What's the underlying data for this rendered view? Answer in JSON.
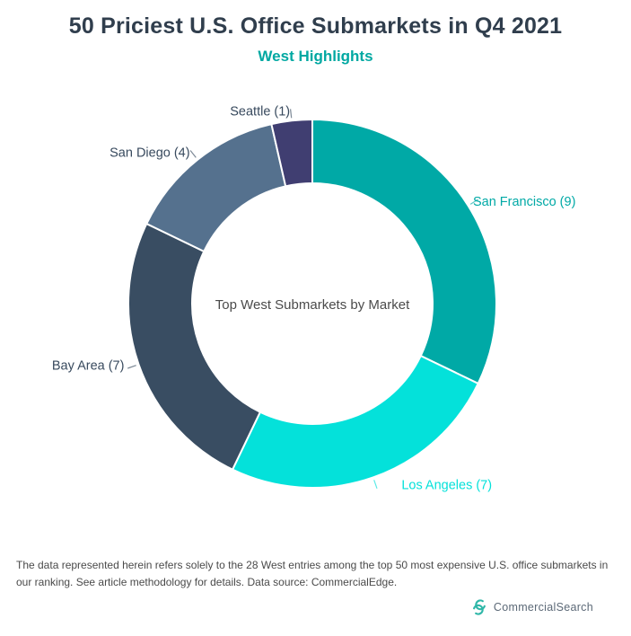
{
  "header": {
    "title": "50 Priciest U.S. Office Submarkets in Q4 2021",
    "title_color": "#303E4D",
    "subtitle": "West Highlights",
    "subtitle_color": "#00A8A2"
  },
  "chart_data": {
    "type": "pie",
    "donut": true,
    "direction": "clockwise",
    "start_angle_deg": 0,
    "title": "Top West Submarkets by Market",
    "center_label": "Top West Submarkets by Market",
    "total": 28,
    "categories": [
      "San Francisco",
      "Los Angeles",
      "Bay Area",
      "San Diego",
      "Seattle"
    ],
    "values": [
      9,
      7,
      7,
      4,
      1
    ],
    "slices": [
      {
        "label": "San Francisco",
        "value": 9,
        "display": "San Francisco (9)",
        "color": "#00A9A6",
        "label_color": "#00A9A6"
      },
      {
        "label": "Los Angeles",
        "value": 7,
        "display": "Los Angeles (7)",
        "color": "#04E1DA",
        "label_color": "#04E1DA"
      },
      {
        "label": "Bay Area",
        "value": 7,
        "display": "Bay Area (7)",
        "color": "#394D62",
        "label_color": "#384A5E"
      },
      {
        "label": "San Diego",
        "value": 4,
        "display": "San Diego (4)",
        "color": "#55718E",
        "label_color": "#384A5E"
      },
      {
        "label": "Seattle",
        "value": 1,
        "display": "Seattle (1)",
        "color": "#403E71",
        "label_color": "#384A5E"
      }
    ]
  },
  "footer": {
    "disclaimer": "The data represented herein refers solely to the 28 West entries among the top 50 most expensive U.S. office submarkets in our ranking. See article methodology for details. Data source: CommercialEdge."
  },
  "branding": {
    "logo_text": "CommercialSearch",
    "logo_color": "#2FB7A8",
    "text_color": "#5C6977"
  }
}
